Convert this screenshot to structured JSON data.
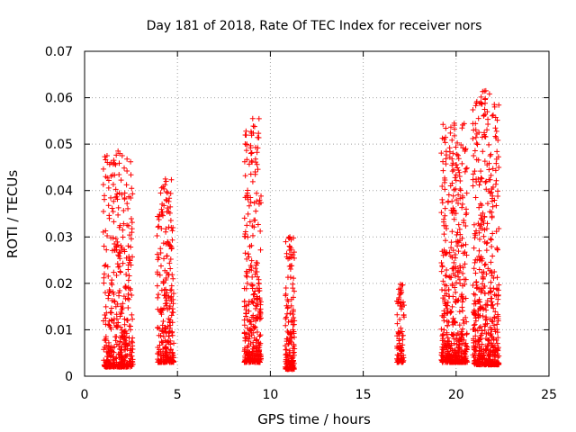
{
  "chart_data": {
    "type": "scatter",
    "title": "Day 181 of 2018, Rate Of TEC Index for receiver nors",
    "xlabel": "GPS time / hours",
    "ylabel": "ROTI / TECUs",
    "xlim": [
      0,
      25
    ],
    "ylim": [
      0,
      0.07
    ],
    "x_ticks": [
      0,
      5,
      10,
      15,
      20,
      25
    ],
    "x_tick_labels": [
      "0",
      "5",
      "10",
      "15",
      "20",
      "25"
    ],
    "y_ticks": [
      0,
      0.01,
      0.02,
      0.03,
      0.04,
      0.05,
      0.06,
      0.07
    ],
    "y_tick_labels": [
      "0",
      "0.01",
      "0.02",
      "0.03",
      "0.04",
      "0.05",
      "0.06",
      "0.07"
    ],
    "grid": true,
    "marker": "+",
    "color": "#ff0000",
    "clusters": [
      {
        "x_start": 1.0,
        "x_end": 2.6,
        "y_min": 0.002,
        "y_max": 0.0485,
        "n": 420
      },
      {
        "x_start": 3.9,
        "x_end": 4.8,
        "y_min": 0.003,
        "y_max": 0.0425,
        "n": 260
      },
      {
        "x_start": 8.6,
        "x_end": 9.5,
        "y_min": 0.003,
        "y_max": 0.0555,
        "n": 320
      },
      {
        "x_start": 10.8,
        "x_end": 11.3,
        "y_min": 0.0015,
        "y_max": 0.03,
        "n": 150
      },
      {
        "x_start": 16.8,
        "x_end": 17.2,
        "y_min": 0.003,
        "y_max": 0.0198,
        "n": 80
      },
      {
        "x_start": 19.2,
        "x_end": 20.6,
        "y_min": 0.003,
        "y_max": 0.0545,
        "n": 480
      },
      {
        "x_start": 20.9,
        "x_end": 22.3,
        "y_min": 0.0025,
        "y_max": 0.0615,
        "n": 520
      }
    ]
  }
}
